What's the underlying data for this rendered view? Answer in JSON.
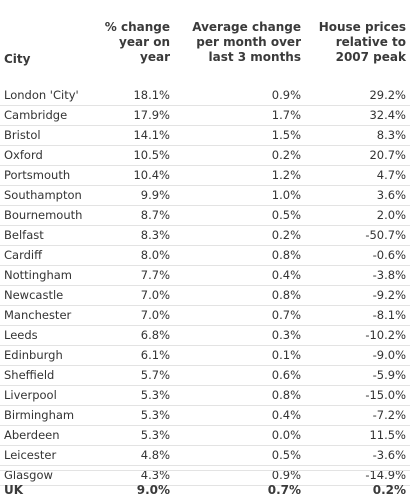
{
  "headers": {
    "city": "City",
    "col1": [
      "% change",
      "year on",
      "year"
    ],
    "col2": [
      "Average change",
      "per month over",
      "last 3 months"
    ],
    "col3": [
      "House prices",
      "relative to",
      "2007 peak"
    ]
  },
  "rows": [
    {
      "city": "London 'City'",
      "yoy": "18.1%",
      "avg3m": "0.9%",
      "vs_peak": "29.2%"
    },
    {
      "city": "Cambridge",
      "yoy": "17.9%",
      "avg3m": "1.7%",
      "vs_peak": "32.4%"
    },
    {
      "city": "Bristol",
      "yoy": "14.1%",
      "avg3m": "1.5%",
      "vs_peak": "8.3%"
    },
    {
      "city": "Oxford",
      "yoy": "10.5%",
      "avg3m": "0.2%",
      "vs_peak": "20.7%"
    },
    {
      "city": "Portsmouth",
      "yoy": "10.4%",
      "avg3m": "1.2%",
      "vs_peak": "4.7%"
    },
    {
      "city": "Southampton",
      "yoy": "9.9%",
      "avg3m": "1.0%",
      "vs_peak": "3.6%"
    },
    {
      "city": "Bournemouth",
      "yoy": "8.7%",
      "avg3m": "0.5%",
      "vs_peak": "2.0%"
    },
    {
      "city": "Belfast",
      "yoy": "8.3%",
      "avg3m": "0.2%",
      "vs_peak": "-50.7%"
    },
    {
      "city": "Cardiff",
      "yoy": "8.0%",
      "avg3m": "0.8%",
      "vs_peak": "-0.6%"
    },
    {
      "city": "Nottingham",
      "yoy": "7.7%",
      "avg3m": "0.4%",
      "vs_peak": "-3.8%"
    },
    {
      "city": "Newcastle",
      "yoy": "7.0%",
      "avg3m": "0.8%",
      "vs_peak": "-9.2%"
    },
    {
      "city": "Manchester",
      "yoy": "7.0%",
      "avg3m": "0.7%",
      "vs_peak": "-8.1%"
    },
    {
      "city": "Leeds",
      "yoy": "6.8%",
      "avg3m": "0.3%",
      "vs_peak": "-10.2%"
    },
    {
      "city": "Edinburgh",
      "yoy": "6.1%",
      "avg3m": "0.1%",
      "vs_peak": "-9.0%"
    },
    {
      "city": "Sheffield",
      "yoy": "5.7%",
      "avg3m": "0.6%",
      "vs_peak": "-5.9%"
    },
    {
      "city": "Liverpool",
      "yoy": "5.3%",
      "avg3m": "0.8%",
      "vs_peak": "-15.0%"
    },
    {
      "city": "Birmingham",
      "yoy": "5.3%",
      "avg3m": "0.4%",
      "vs_peak": "-7.2%"
    },
    {
      "city": "Aberdeen",
      "yoy": "5.3%",
      "avg3m": "0.0%",
      "vs_peak": "11.5%"
    },
    {
      "city": "Leicester",
      "yoy": "4.8%",
      "avg3m": "0.5%",
      "vs_peak": "-3.6%"
    },
    {
      "city": "Glasgow",
      "yoy": "4.3%",
      "avg3m": "0.9%",
      "vs_peak": "-14.9%"
    }
  ],
  "total": {
    "city": "UK",
    "yoy": "9.0%",
    "avg3m": "0.7%",
    "vs_peak": "0.2%"
  }
}
